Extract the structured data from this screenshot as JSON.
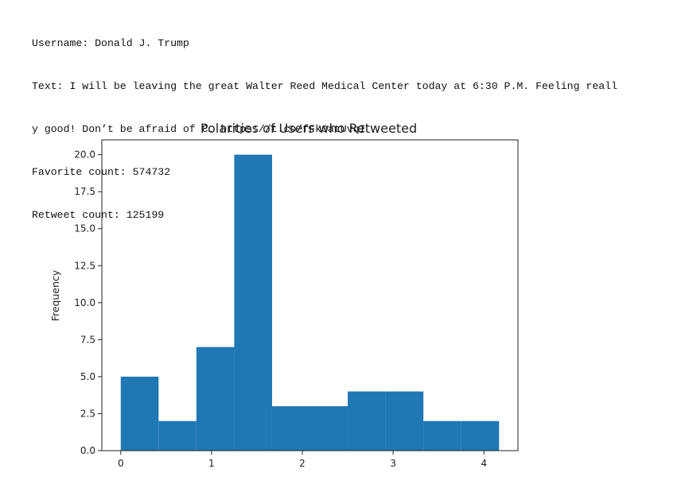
{
  "output": {
    "username_line": "Username: Donald J. Trump",
    "text_line_1": "Text: I will be leaving the great Walter Reed Medical Center today at 6:30 P.M. Feeling reall",
    "text_line_2": "y good! Don’t be afraid of C… https://t.co/fFk0atUvqI",
    "favorite_line": "Favorite count: 574732",
    "retweet_line": "Retweet count: 125199"
  },
  "chart_data": {
    "type": "bar",
    "title": "Polarities of Users who Retweeted",
    "xlabel": "",
    "ylabel": "Frequency",
    "bins": [
      {
        "x0": 0.0,
        "x1": 0.4167,
        "value": 5
      },
      {
        "x0": 0.4167,
        "x1": 0.8333,
        "value": 2
      },
      {
        "x0": 0.8333,
        "x1": 1.25,
        "value": 7
      },
      {
        "x0": 1.25,
        "x1": 1.6667,
        "value": 20
      },
      {
        "x0": 1.6667,
        "x1": 2.0833,
        "value": 3
      },
      {
        "x0": 2.0833,
        "x1": 2.5,
        "value": 3
      },
      {
        "x0": 2.5,
        "x1": 2.9167,
        "value": 4
      },
      {
        "x0": 2.9167,
        "x1": 3.3333,
        "value": 4
      },
      {
        "x0": 3.3333,
        "x1": 3.75,
        "value": 2
      },
      {
        "x0": 3.75,
        "x1": 4.1667,
        "value": 2
      }
    ],
    "xlim": [
      -0.2083,
      4.375
    ],
    "ylim": [
      0,
      21
    ],
    "xticks": [
      0,
      1,
      2,
      3,
      4
    ],
    "xtick_labels": [
      "0",
      "1",
      "2",
      "3",
      "4"
    ],
    "yticks": [
      0,
      2.5,
      5,
      7.5,
      10,
      12.5,
      15,
      17.5,
      20
    ],
    "ytick_labels": [
      "0.0",
      "2.5",
      "5.0",
      "7.5",
      "10.0",
      "12.5",
      "15.0",
      "17.5",
      "20.0"
    ],
    "bar_color": "#1f77b4",
    "grid": false,
    "legend": "none"
  }
}
